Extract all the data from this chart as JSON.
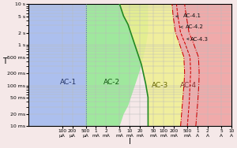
{
  "xlabel": "I",
  "ylabel": "T",
  "xlim_log": [
    -5.0,
    1.0
  ],
  "ylim_log": [
    -2.0,
    1.0
  ],
  "x_ticks_val": [
    0.0001,
    0.0002,
    0.0005,
    0.001,
    0.002,
    0.005,
    0.01,
    0.02,
    0.05,
    0.1,
    0.2,
    0.5,
    1.0,
    2.0,
    5.0,
    10.0
  ],
  "x_tick_labels": [
    "100\nμA",
    "200\nμA",
    "500\nμA",
    "1\nmA",
    "2\nmA",
    "5\nmA",
    "10\nmA",
    "20\nmA",
    "50\nmA",
    "100\nmA",
    "200\nmA",
    "500\nmA",
    "1\nA",
    "2\nA",
    "5\nA",
    "10\nA"
  ],
  "y_ticks_val": [
    0.01,
    0.02,
    0.05,
    0.1,
    0.2,
    0.5,
    1.0,
    2.0,
    5.0,
    10.0
  ],
  "y_tick_labels": [
    "10 ms",
    "20 ms",
    "50 ms",
    "100 ms",
    "200 ms",
    "500 ms",
    "1 s",
    "2 s",
    "5 s",
    "10 s"
  ],
  "bg_color": "#f5e8e8",
  "zone_AC1_color": "#a0b8f0",
  "zone_AC2_color": "#90e890",
  "zone_AC3_color": "#f0f090",
  "zone_AC4_color": "#f0a0a0",
  "boundary_AC1_x": 0.0005,
  "boundary_AC1_color": "#5555cc",
  "boundary_AC2_green_color": "#228822",
  "ac1_label": "AC-1",
  "ac2_label": "AC-2",
  "ac3_label": "AC-3",
  "ac4_label": "AC-4",
  "ac41_label": "AC-4.1",
  "ac42_label": "AC-4.2",
  "ac43_label": "AC-4.3",
  "curve_color": "#cc0000",
  "ac23_points_logt": [
    -2.0,
    -1.7,
    -1.3,
    -1.0,
    -0.5,
    0.0,
    0.5,
    0.7,
    1.0
  ],
  "ac23_points_logx": [
    -1.46,
    -1.46,
    -1.46,
    -1.52,
    -1.65,
    -1.85,
    -2.05,
    -2.18,
    -2.3
  ],
  "ac41_points_logt": [
    -2.0,
    -1.5,
    -1.0,
    -0.7,
    -0.3,
    0.0,
    0.3,
    0.7,
    1.0
  ],
  "ac41_points_logx": [
    -0.5,
    -0.45,
    -0.4,
    -0.38,
    -0.4,
    -0.52,
    -0.65,
    -0.72,
    -0.75
  ],
  "ac42_points_logt": [
    -2.0,
    -1.5,
    -1.0,
    -0.7,
    -0.3,
    0.0,
    0.3,
    0.7,
    1.0
  ],
  "ac42_points_logx": [
    -0.3,
    -0.25,
    -0.22,
    -0.2,
    -0.22,
    -0.35,
    -0.5,
    -0.58,
    -0.62
  ],
  "ac43_points_logt": [
    -2.0,
    -1.5,
    -1.0,
    -0.7,
    -0.3,
    0.0,
    0.3,
    0.7,
    1.0
  ],
  "ac43_points_logx": [
    -0.05,
    0.0,
    0.04,
    0.05,
    0.03,
    -0.1,
    -0.25,
    -0.33,
    -0.38
  ]
}
